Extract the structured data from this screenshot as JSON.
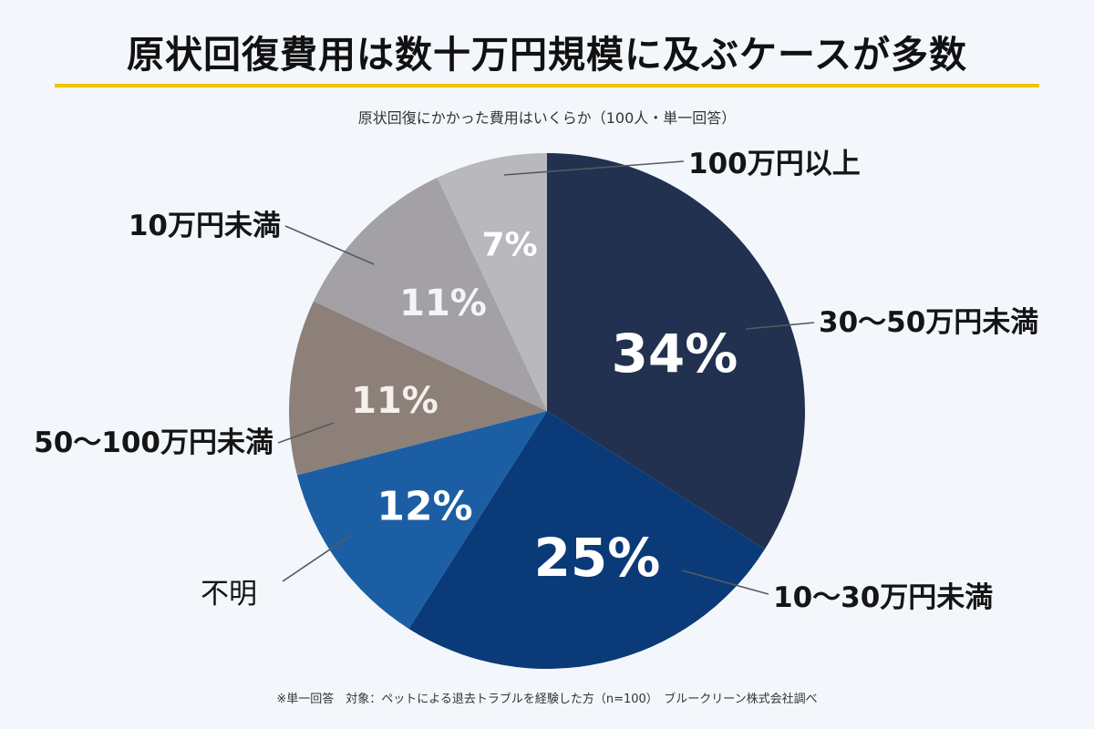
{
  "title": "原状回復費用は数十万円規模に及ぶケースが多数",
  "subtitle": "原状回復にかかった費用はいくらか（100人・単一回答）",
  "footer": "※単一回答　対象：ペットによる退去トラブルを経験した方（n=100）　ブルークリーン株式会社調べ",
  "chart_data": {
    "type": "pie",
    "title": "原状回復にかかった費用はいくらか（100人・単一回答）",
    "slices": [
      {
        "label": "30〜50万円未満",
        "value": 34,
        "value_label": "34%",
        "color": "#22314f"
      },
      {
        "label": "10〜30万円未満",
        "value": 25,
        "value_label": "25%",
        "color": "#0b3a78"
      },
      {
        "label": "不明",
        "value": 12,
        "value_label": "12%",
        "color": "#1c5ea3"
      },
      {
        "label": "50〜100万円未満",
        "value": 11,
        "value_label": "11%",
        "color": "#8c8079"
      },
      {
        "label": "10万円未満",
        "value": 11,
        "value_label": "11%",
        "color": "#a3a0a6"
      },
      {
        "label": "100万円以上",
        "value": 7,
        "value_label": "7%",
        "color": "#b8b8bd"
      }
    ]
  }
}
